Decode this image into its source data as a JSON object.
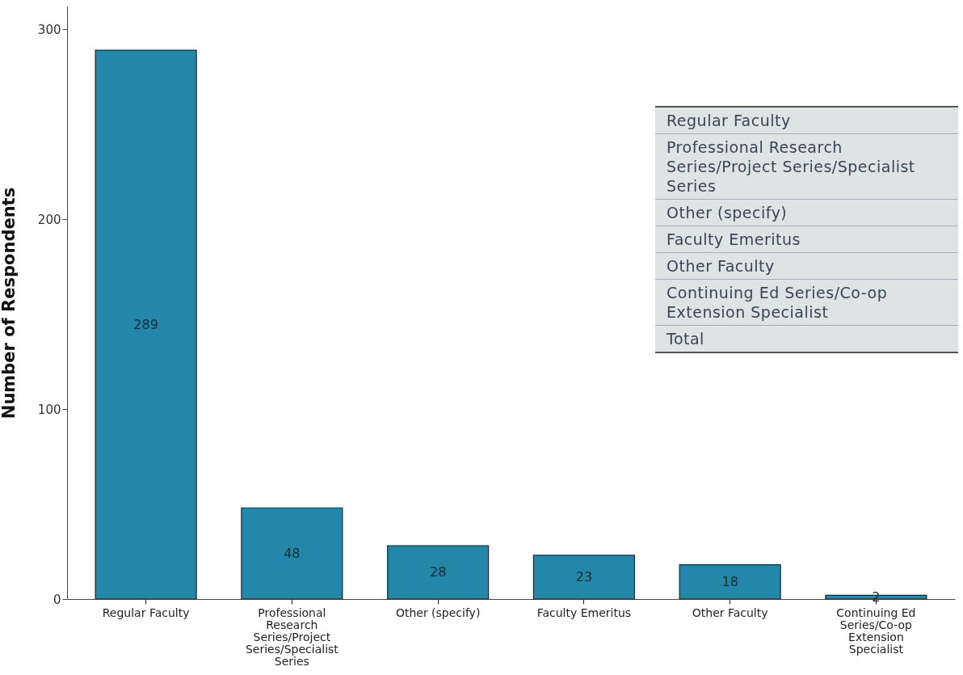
{
  "chart_data": {
    "type": "bar",
    "ylabel": "Number of Respondents",
    "categories": [
      "Regular Faculty",
      "Professional Research Series/Project Series/Specialist Series",
      "Other (specify)",
      "Faculty Emeritus",
      "Other Faculty",
      "Continuing Ed Series/Co-op Extension Specialist"
    ],
    "values": [
      289,
      48,
      28,
      23,
      18,
      2
    ],
    "color": "#2387aa",
    "data_labels": true,
    "ylim": [
      0,
      312
    ],
    "yticks": [
      0,
      100,
      200,
      300
    ],
    "annotations": [
      "Regular Faculty",
      "Professional Research Series/Project Series/Specialist Series",
      "Other (specify)",
      "Faculty Emeritus",
      "Other Faculty",
      "Continuing Ed Series/Co-op Extension Specialist",
      "Total"
    ]
  }
}
